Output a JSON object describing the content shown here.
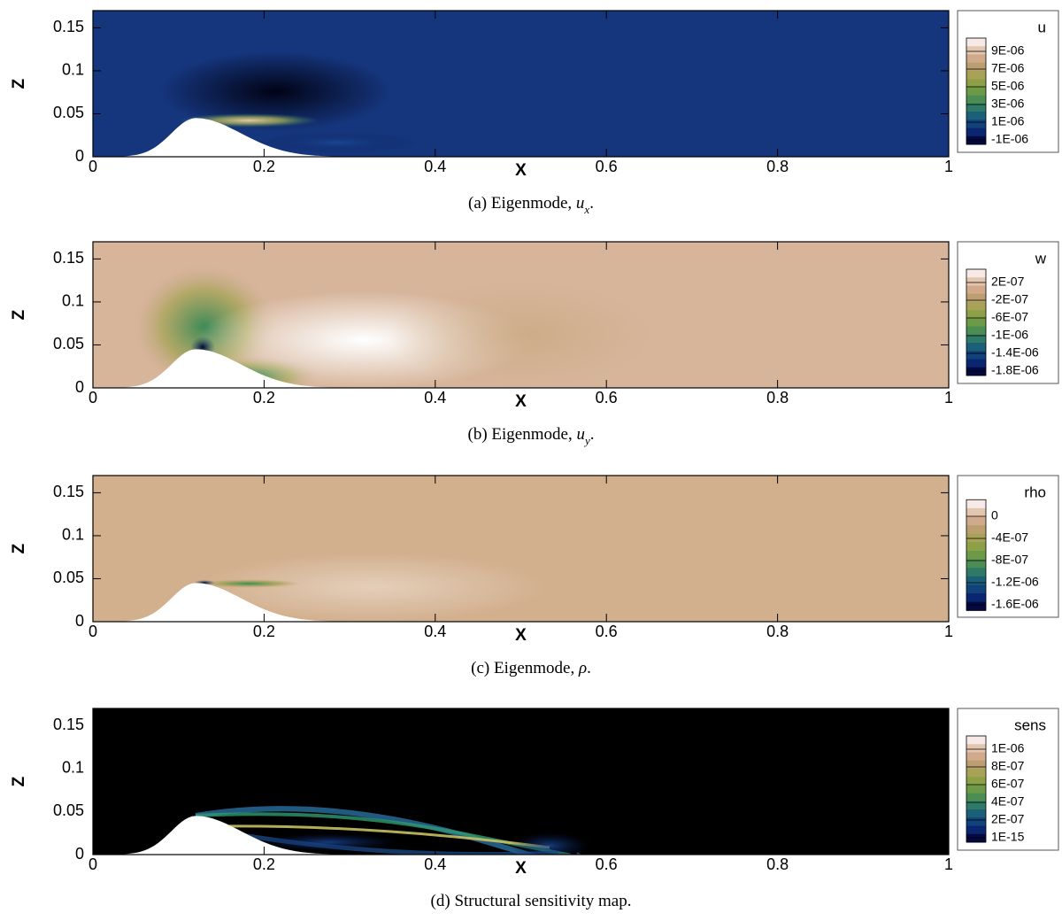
{
  "figure": {
    "panels": [
      {
        "xlabel": "X",
        "ylabel": "Z",
        "xlim": [
          0,
          1
        ],
        "ylim": [
          0,
          0.17
        ],
        "xticks": [
          0,
          0.2,
          0.4,
          0.6,
          0.8,
          1
        ],
        "yticks": [
          0,
          0.05,
          0.1,
          0.15
        ],
        "colorbar": {
          "title": "u",
          "ticks": [
            {
              "value": 9e-06,
              "label": "9E-06"
            },
            {
              "value": 7e-06,
              "label": "7E-06"
            },
            {
              "value": 5e-06,
              "label": "5E-06"
            },
            {
              "value": 3e-06,
              "label": "3E-06"
            },
            {
              "value": 1e-06,
              "label": "1E-06"
            },
            {
              "value": -1e-06,
              "label": "-1E-06"
            }
          ]
        },
        "caption": {
          "prefix": "(a) Eigenmode, ",
          "math": "u",
          "sub": "x",
          "suffix": "."
        }
      },
      {
        "xlabel": "X",
        "ylabel": "Z",
        "xlim": [
          0,
          1
        ],
        "ylim": [
          0,
          0.17
        ],
        "xticks": [
          0,
          0.2,
          0.4,
          0.6,
          0.8,
          1
        ],
        "yticks": [
          0,
          0.05,
          0.1,
          0.15
        ],
        "colorbar": {
          "title": "w",
          "ticks": [
            {
              "value": 2e-07,
              "label": "2E-07"
            },
            {
              "value": -2e-07,
              "label": "-2E-07"
            },
            {
              "value": -6e-07,
              "label": "-6E-07"
            },
            {
              "value": -1e-06,
              "label": "-1E-06"
            },
            {
              "value": -1.4e-06,
              "label": "-1.4E-06"
            },
            {
              "value": -1.8e-06,
              "label": "-1.8E-06"
            }
          ]
        },
        "caption": {
          "prefix": "(b) Eigenmode, ",
          "math": "u",
          "sub": "y",
          "suffix": "."
        }
      },
      {
        "xlabel": "X",
        "ylabel": "Z",
        "xlim": [
          0,
          1
        ],
        "ylim": [
          0,
          0.17
        ],
        "xticks": [
          0,
          0.2,
          0.4,
          0.6,
          0.8,
          1
        ],
        "yticks": [
          0,
          0.05,
          0.1,
          0.15
        ],
        "colorbar": {
          "title": "rho",
          "ticks": [
            0,
            {
              "value": -4e-07,
              "label": "-4E-07"
            },
            {
              "value": -8e-07,
              "label": "-8E-07"
            },
            {
              "value": -1.2e-06,
              "label": "-1.2E-06"
            },
            {
              "value": -1.6e-06,
              "label": "-1.6E-06"
            }
          ]
        },
        "caption": {
          "prefix": "(c) Eigenmode, ",
          "math": "ρ",
          "suffix": "."
        }
      },
      {
        "xlabel": "X",
        "ylabel": "Z",
        "xlim": [
          0,
          1
        ],
        "ylim": [
          0,
          0.17
        ],
        "xticks": [
          0,
          0.2,
          0.4,
          0.6,
          0.8,
          1
        ],
        "yticks": [
          0,
          0.05,
          0.1,
          0.15
        ],
        "colorbar": {
          "title": "sens",
          "ticks": [
            {
              "value": 1e-06,
              "label": "1E-06"
            },
            {
              "value": 8e-07,
              "label": "8E-07"
            },
            {
              "value": 6e-07,
              "label": "6E-07"
            },
            {
              "value": 4e-07,
              "label": "4E-07"
            },
            {
              "value": 2e-07,
              "label": "2E-07"
            },
            {
              "value": 1e-15,
              "label": "1E-15"
            }
          ]
        },
        "caption": {
          "prefix": "(d) Structural sensitivity map."
        }
      }
    ]
  }
}
